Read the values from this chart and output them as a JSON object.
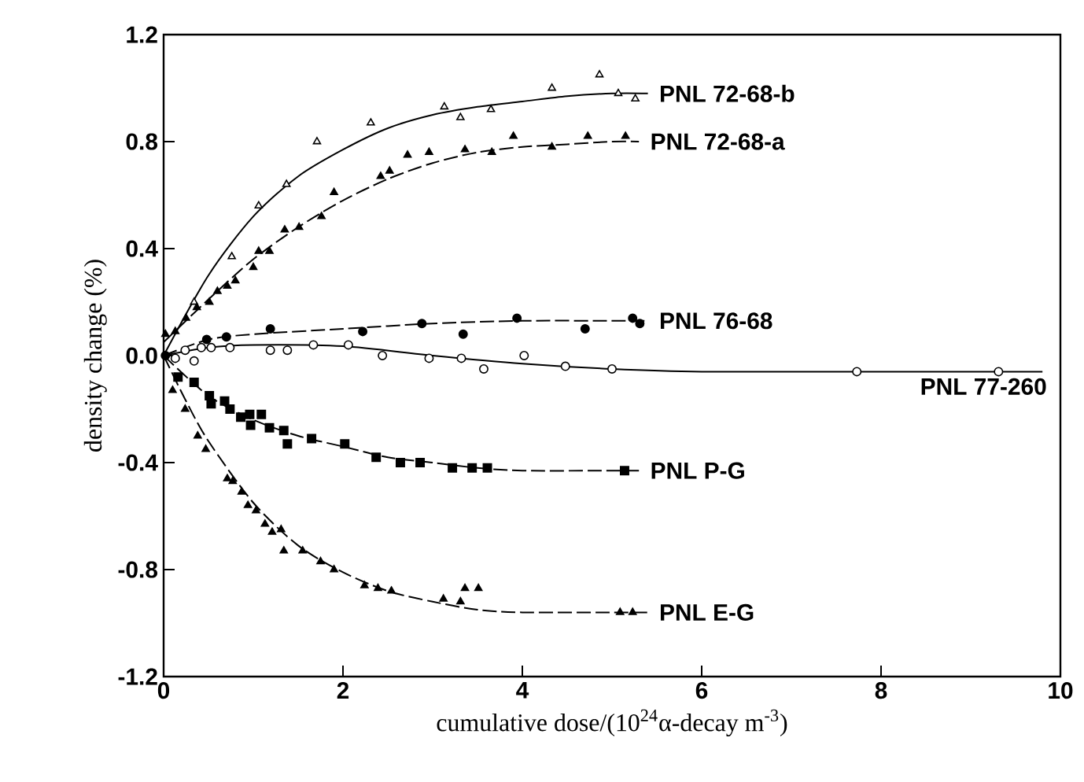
{
  "chart_data": {
    "type": "scatter",
    "xlabel": "cumulative dose/(10$^{24}$α-decay m$^{-3}$)",
    "ylabel": "density change (%)",
    "xlim": [
      0,
      10
    ],
    "ylim": [
      -1.2,
      1.2
    ],
    "xticks": [
      0,
      2,
      4,
      6,
      8,
      10
    ],
    "yticks": [
      -1.2,
      -0.8,
      -0.4,
      {
        "value": 0,
        "label": "0.0"
      },
      0.4,
      0.8,
      1.2
    ],
    "grid": false,
    "legend": false,
    "series": [
      {
        "name": "PNL 72-68-b",
        "marker": "triangle",
        "color": "#ffffff",
        "x": [
          0.34,
          0.76,
          1.06,
          1.37,
          1.71,
          2.31,
          3.13,
          3.31,
          3.65,
          4.33,
          4.86,
          5.07,
          5.26
        ],
        "values": [
          0.2,
          0.37,
          0.56,
          0.64,
          0.8,
          0.87,
          0.93,
          0.89,
          0.92,
          1.0,
          1.05,
          0.98,
          0.96
        ]
      },
      {
        "type": "line",
        "line_style": "solid",
        "color": "#000000",
        "x": [
          0,
          0.5,
          1,
          1.5,
          2,
          2.5,
          3,
          3.5,
          4,
          4.5,
          5,
          5.4
        ],
        "values": [
          0.0,
          0.3,
          0.52,
          0.67,
          0.77,
          0.85,
          0.9,
          0.93,
          0.95,
          0.97,
          0.98,
          0.98
        ]
      },
      {
        "name": "PNL 72-68-a",
        "marker": "triangle",
        "color": "#000000",
        "x": [
          0.02,
          0.13,
          0.25,
          0.37,
          0.51,
          0.6,
          0.71,
          0.8,
          1.0,
          1.06,
          1.18,
          1.35,
          1.51,
          1.76,
          1.9,
          2.42,
          2.52,
          2.72,
          2.96,
          3.36,
          3.66,
          3.9,
          4.33,
          4.73,
          5.15
        ],
        "values": [
          0.08,
          0.09,
          0.14,
          0.18,
          0.2,
          0.24,
          0.26,
          0.28,
          0.33,
          0.39,
          0.39,
          0.47,
          0.48,
          0.52,
          0.61,
          0.67,
          0.69,
          0.75,
          0.76,
          0.77,
          0.76,
          0.82,
          0.78,
          0.82,
          0.82
        ]
      },
      {
        "type": "line",
        "line_style": "dashed",
        "color": "#000000",
        "x": [
          0,
          0.5,
          1,
          1.5,
          2,
          2.5,
          3,
          3.5,
          4,
          4.5,
          5,
          5.3
        ],
        "values": [
          0.05,
          0.21,
          0.36,
          0.48,
          0.58,
          0.66,
          0.72,
          0.76,
          0.78,
          0.79,
          0.8,
          0.8
        ]
      },
      {
        "name": "PNL 76-68",
        "marker": "circle",
        "color": "#000000",
        "x": [
          0.02,
          0.48,
          0.7,
          1.19,
          2.22,
          2.88,
          3.34,
          3.94,
          4.7,
          5.23,
          5.31
        ],
        "values": [
          0.0,
          0.06,
          0.07,
          0.1,
          0.09,
          0.12,
          0.08,
          0.14,
          0.1,
          0.14,
          0.12
        ]
      },
      {
        "type": "line",
        "line_style": "dashed",
        "color": "#000000",
        "x": [
          0,
          0.5,
          1,
          2,
          3,
          4,
          5,
          5.4
        ],
        "values": [
          0.0,
          0.06,
          0.08,
          0.1,
          0.12,
          0.13,
          0.13,
          0.13
        ]
      },
      {
        "name": "PNL 77-260",
        "marker": "circle",
        "color": "#ffffff",
        "x": [
          0.13,
          0.24,
          0.34,
          0.42,
          0.53,
          0.74,
          1.19,
          1.38,
          1.67,
          2.06,
          2.44,
          2.96,
          3.32,
          3.57,
          4.02,
          4.48,
          5.0,
          7.73,
          9.31
        ],
        "values": [
          -0.01,
          0.02,
          -0.02,
          0.03,
          0.03,
          0.03,
          0.02,
          0.02,
          0.04,
          0.04,
          0.0,
          -0.01,
          -0.01,
          -0.05,
          0.0,
          -0.04,
          -0.05,
          -0.06,
          -0.06
        ]
      },
      {
        "type": "line",
        "line_style": "solid",
        "color": "#000000",
        "x": [
          0,
          0.5,
          1,
          2,
          3,
          4,
          5,
          6,
          8,
          9.8
        ],
        "values": [
          0.0,
          0.03,
          0.04,
          0.035,
          0.0,
          -0.03,
          -0.05,
          -0.06,
          -0.06,
          -0.06
        ]
      },
      {
        "name": "PNL P-G",
        "marker": "square",
        "color": "#000000",
        "x": [
          0.16,
          0.34,
          0.51,
          0.53,
          0.68,
          0.74,
          0.86,
          0.96,
          0.97,
          1.09,
          1.18,
          1.34,
          1.38,
          1.65,
          2.02,
          2.37,
          2.64,
          2.86,
          3.22,
          3.44,
          3.61,
          5.14
        ],
        "values": [
          -0.08,
          -0.1,
          -0.15,
          -0.18,
          -0.17,
          -0.2,
          -0.23,
          -0.22,
          -0.26,
          -0.22,
          -0.27,
          -0.28,
          -0.33,
          -0.31,
          -0.33,
          -0.38,
          -0.4,
          -0.4,
          -0.42,
          -0.42,
          -0.42,
          -0.43
        ]
      },
      {
        "type": "line",
        "line_style": "dashed",
        "color": "#000000",
        "x": [
          0,
          0.5,
          1,
          1.5,
          2,
          2.5,
          3,
          3.5,
          4,
          5,
          5.3
        ],
        "values": [
          0.0,
          -0.15,
          -0.24,
          -0.3,
          -0.34,
          -0.38,
          -0.4,
          -0.42,
          -0.43,
          -0.43,
          -0.43
        ]
      },
      {
        "name": "PNL E-G",
        "marker": "triangle",
        "color": "#000000",
        "x": [
          0.1,
          0.24,
          0.38,
          0.47,
          0.71,
          0.77,
          0.87,
          0.94,
          1.03,
          1.13,
          1.21,
          1.31,
          1.34,
          1.55,
          1.75,
          1.9,
          2.24,
          2.39,
          2.54,
          3.12,
          3.31,
          3.36,
          3.51,
          5.09,
          5.23
        ],
        "values": [
          -0.13,
          -0.2,
          -0.3,
          -0.35,
          -0.46,
          -0.47,
          -0.51,
          -0.56,
          -0.58,
          -0.63,
          -0.66,
          -0.65,
          -0.73,
          -0.73,
          -0.77,
          -0.8,
          -0.86,
          -0.87,
          -0.88,
          -0.91,
          -0.92,
          -0.87,
          -0.87,
          -0.96,
          -0.96
        ]
      },
      {
        "type": "line",
        "line_style": "dashed",
        "color": "#000000",
        "x": [
          0,
          0.25,
          0.5,
          1,
          1.5,
          2,
          2.5,
          3,
          3.5,
          4,
          5,
          5.4
        ],
        "values": [
          0.0,
          -0.17,
          -0.32,
          -0.55,
          -0.71,
          -0.81,
          -0.88,
          -0.92,
          -0.95,
          -0.96,
          -0.96,
          -0.96
        ]
      }
    ]
  }
}
